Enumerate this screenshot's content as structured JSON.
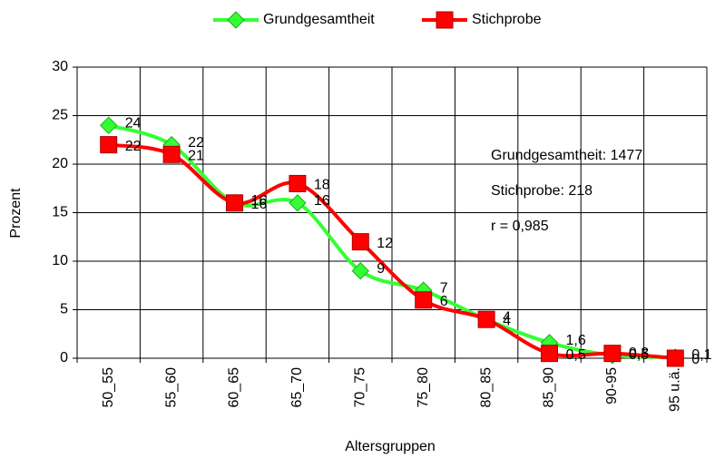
{
  "chart_data": {
    "type": "line",
    "x_label": "Altersgruppen",
    "y_label": "Prozent",
    "categories": [
      "50_55",
      "55_60",
      "60_65",
      "65_70",
      "70_75",
      "75_80",
      "80_85",
      "85_90",
      "90-95",
      "95 u.ä."
    ],
    "series": [
      {
        "name": "Grundgesamtheit",
        "color": "#33ff33",
        "marker": "diamond",
        "values": [
          24,
          22,
          16,
          16,
          9,
          7,
          4,
          1.6,
          0.3,
          0.1
        ],
        "value_labels": [
          "24",
          "22",
          "16",
          "16",
          "9",
          "7",
          "4",
          "1,6",
          "0,3",
          "0,1"
        ]
      },
      {
        "name": "Stichprobe",
        "color": "#ff0000",
        "marker": "square",
        "values": [
          22,
          21,
          16,
          18,
          12,
          6,
          4,
          0.5,
          0.5,
          0
        ],
        "value_labels": [
          "22",
          "21",
          "16",
          "18",
          "12",
          "6",
          "4",
          "0,5",
          "0,5",
          "0"
        ]
      }
    ],
    "annotations": [
      "Grundgesamtheit: 1477",
      "Stichprobe: 218",
      "r = 0,985"
    ],
    "ylim": [
      0,
      30
    ],
    "yticks": [
      0,
      5,
      10,
      15,
      20,
      25,
      30
    ],
    "grid": true,
    "legend": "top"
  }
}
